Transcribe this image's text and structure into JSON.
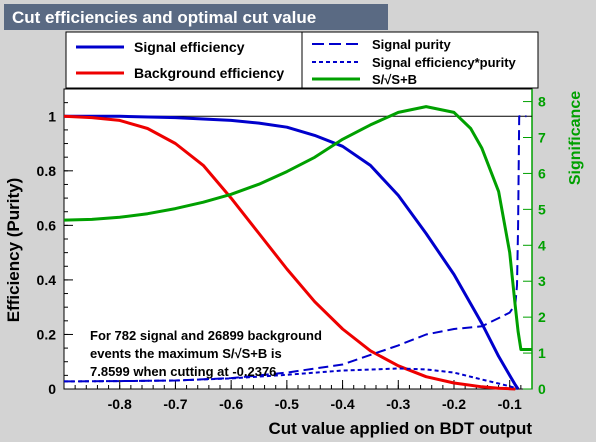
{
  "title": "Cut efficiencies and optimal cut value",
  "colors": {
    "signal": "#0000cc",
    "background": "#ee0000",
    "significance": "#00a000",
    "title_bg": "#5a6a83",
    "panel_bg": "#d3d3d3"
  },
  "legend": {
    "left": [
      {
        "label": "Signal efficiency",
        "color": "#0000cc",
        "dash": "solid"
      },
      {
        "label": "Background efficiency",
        "color": "#ee0000",
        "dash": "solid"
      }
    ],
    "right": [
      {
        "label": "Signal purity",
        "color": "#0000cc",
        "dash": "long-dash"
      },
      {
        "label": "Signal efficiency*purity",
        "color": "#0000cc",
        "dash": "short-dash"
      },
      {
        "label": "S/√S+B",
        "color": "#00a000",
        "dash": "solid"
      }
    ]
  },
  "annotation": [
    "For 782 signal and 26899 background",
    "events the maximum S/√S+B is",
    "7.8599 when cutting at -0.2376"
  ],
  "chart_data": {
    "type": "line",
    "xlabel": "Cut value applied on BDT output",
    "ylabel": "Efficiency (Purity)",
    "y2label": "Significance",
    "xlim": [
      -0.9,
      -0.06
    ],
    "ylim": [
      0,
      1.1
    ],
    "y2lim": [
      0,
      8.35
    ],
    "xticks": [
      -0.8,
      -0.7,
      -0.6,
      -0.5,
      -0.4,
      -0.3,
      -0.2,
      -0.1
    ],
    "yticks": [
      0,
      0.2,
      0.4,
      0.6,
      0.8,
      1
    ],
    "y2ticks": [
      0,
      1,
      2,
      3,
      4,
      5,
      6,
      7,
      8
    ],
    "legend_position": "top",
    "series": [
      {
        "name": "Signal efficiency",
        "axis": "left",
        "style": "solid",
        "color": "#0000cc",
        "x": [
          -0.9,
          -0.8,
          -0.7,
          -0.6,
          -0.55,
          -0.5,
          -0.45,
          -0.4,
          -0.35,
          -0.3,
          -0.25,
          -0.2,
          -0.15,
          -0.12,
          -0.1,
          -0.09,
          -0.085
        ],
        "y": [
          1.0,
          1.0,
          0.995,
          0.985,
          0.975,
          0.96,
          0.93,
          0.89,
          0.82,
          0.71,
          0.57,
          0.42,
          0.24,
          0.12,
          0.05,
          0.015,
          0.0
        ]
      },
      {
        "name": "Background efficiency",
        "axis": "left",
        "style": "solid",
        "color": "#ee0000",
        "x": [
          -0.9,
          -0.85,
          -0.8,
          -0.75,
          -0.7,
          -0.65,
          -0.6,
          -0.55,
          -0.5,
          -0.45,
          -0.4,
          -0.35,
          -0.3,
          -0.25,
          -0.2,
          -0.15,
          -0.12,
          -0.1,
          -0.09
        ],
        "y": [
          1.0,
          0.995,
          0.985,
          0.955,
          0.9,
          0.82,
          0.7,
          0.57,
          0.44,
          0.32,
          0.22,
          0.14,
          0.085,
          0.045,
          0.022,
          0.008,
          0.003,
          0.001,
          0.0
        ]
      },
      {
        "name": "Signal purity",
        "axis": "left",
        "style": "long-dash",
        "color": "#0000cc",
        "x": [
          -0.9,
          -0.8,
          -0.7,
          -0.6,
          -0.5,
          -0.4,
          -0.3,
          -0.25,
          -0.2,
          -0.15,
          -0.12,
          -0.1,
          -0.09,
          -0.087,
          -0.085,
          -0.083,
          -0.08,
          -0.07
        ],
        "y": [
          0.028,
          0.029,
          0.031,
          0.04,
          0.06,
          0.09,
          0.16,
          0.2,
          0.22,
          0.23,
          0.26,
          0.28,
          0.31,
          0.38,
          0.6,
          1.0,
          1.0,
          1.0
        ]
      },
      {
        "name": "Signal efficiency*purity",
        "axis": "left",
        "style": "short-dash",
        "color": "#0000cc",
        "x": [
          -0.9,
          -0.8,
          -0.7,
          -0.6,
          -0.5,
          -0.4,
          -0.3,
          -0.25,
          -0.2,
          -0.15,
          -0.12,
          -0.1,
          -0.09,
          -0.085
        ],
        "y": [
          0.028,
          0.029,
          0.031,
          0.039,
          0.052,
          0.068,
          0.075,
          0.072,
          0.06,
          0.035,
          0.02,
          0.01,
          0.004,
          0.0
        ]
      },
      {
        "name": "S/√S+B",
        "axis": "right",
        "style": "solid",
        "color": "#00a000",
        "x": [
          -0.9,
          -0.85,
          -0.8,
          -0.75,
          -0.7,
          -0.65,
          -0.6,
          -0.55,
          -0.5,
          -0.45,
          -0.4,
          -0.35,
          -0.3,
          -0.25,
          -0.2,
          -0.17,
          -0.15,
          -0.12,
          -0.1,
          -0.09,
          -0.085,
          -0.08,
          -0.07,
          -0.06
        ],
        "y": [
          4.7,
          4.72,
          4.78,
          4.88,
          5.02,
          5.2,
          5.42,
          5.7,
          6.05,
          6.45,
          6.95,
          7.35,
          7.7,
          7.86,
          7.7,
          7.25,
          6.7,
          5.5,
          3.8,
          2.3,
          1.6,
          1.1,
          1.1,
          1.1
        ]
      }
    ]
  }
}
